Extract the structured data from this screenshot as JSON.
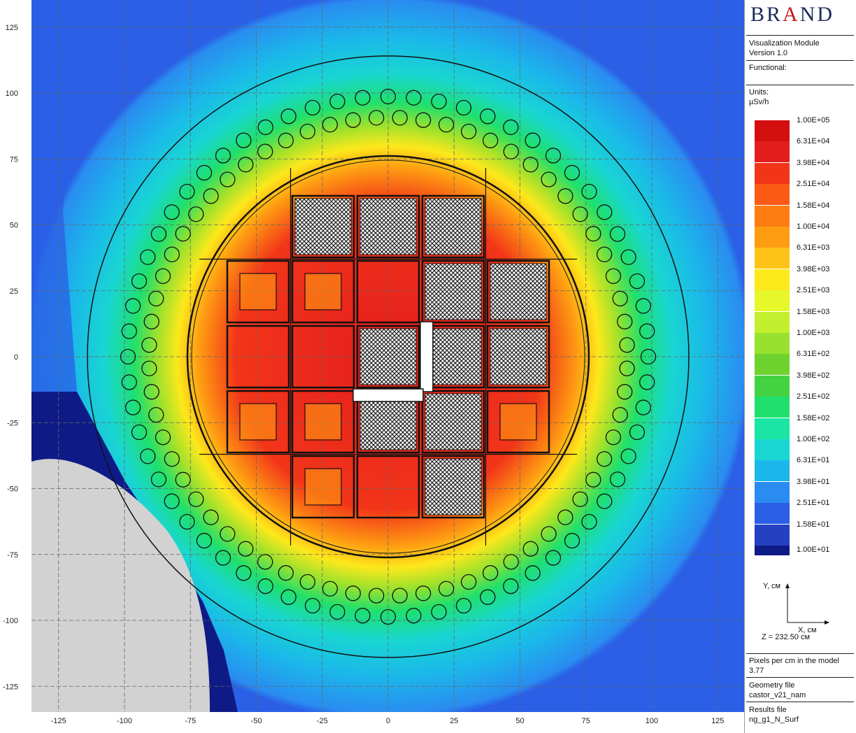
{
  "brand": {
    "part1": "BR",
    "mid": "A",
    "part2": "ND"
  },
  "module": {
    "name": "Visualization Module",
    "version": "Version 1.0"
  },
  "functional_label": "Functional:",
  "units": {
    "label": "Units:",
    "value": "µSv/h"
  },
  "legend": [
    {
      "label": "1.00E+05",
      "color": "#d40f0f"
    },
    {
      "label": "6.31E+04",
      "color": "#e31d1d"
    },
    {
      "label": "3.98E+04",
      "color": "#f23519"
    },
    {
      "label": "2.51E+04",
      "color": "#fb5a14"
    },
    {
      "label": "1.58E+04",
      "color": "#fd7d12"
    },
    {
      "label": "1.00E+04",
      "color": "#fe9c12"
    },
    {
      "label": "6.31E+03",
      "color": "#ffc317"
    },
    {
      "label": "3.98E+03",
      "color": "#fde81b"
    },
    {
      "label": "2.51E+03",
      "color": "#e6f72a"
    },
    {
      "label": "1.58E+03",
      "color": "#c2f02e"
    },
    {
      "label": "1.00E+03",
      "color": "#98e12e"
    },
    {
      "label": "6.31E+02",
      "color": "#6ed22f"
    },
    {
      "label": "3.98E+02",
      "color": "#43d242"
    },
    {
      "label": "2.51E+02",
      "color": "#1fe06d"
    },
    {
      "label": "1.58E+02",
      "color": "#1ae5a4"
    },
    {
      "label": "1.00E+02",
      "color": "#19d6d2"
    },
    {
      "label": "6.31E+01",
      "color": "#1bb7ea"
    },
    {
      "label": "3.98E+01",
      "color": "#2a8cf0"
    },
    {
      "label": "2.51E+01",
      "color": "#2a5fe6"
    },
    {
      "label": "1.58E+01",
      "color": "#2341c2"
    },
    {
      "label": "1.00E+01",
      "color": "#0e1b86"
    }
  ],
  "axes_indicator": {
    "y_label": "Y, см",
    "x_label": "X, см",
    "z_text": "Z = 232.50 см"
  },
  "pixels_per_cm": {
    "label": "Pixels per cm in the model",
    "value": "3.77"
  },
  "geometry_file": {
    "label": "Geometry file",
    "value": "castor_v21_nam"
  },
  "results_file": {
    "label": "Results file",
    "value": "ng_g1_N_Surf"
  },
  "plot": {
    "x_ticks": [
      "-125",
      "-100",
      "-75",
      "-50",
      "-25",
      "0",
      "25",
      "50",
      "75",
      "100",
      "125"
    ],
    "y_ticks": [
      "125",
      "100",
      "75",
      "50",
      "25",
      "0",
      "-25",
      "-50",
      "-75",
      "-100",
      "-125"
    ]
  }
}
